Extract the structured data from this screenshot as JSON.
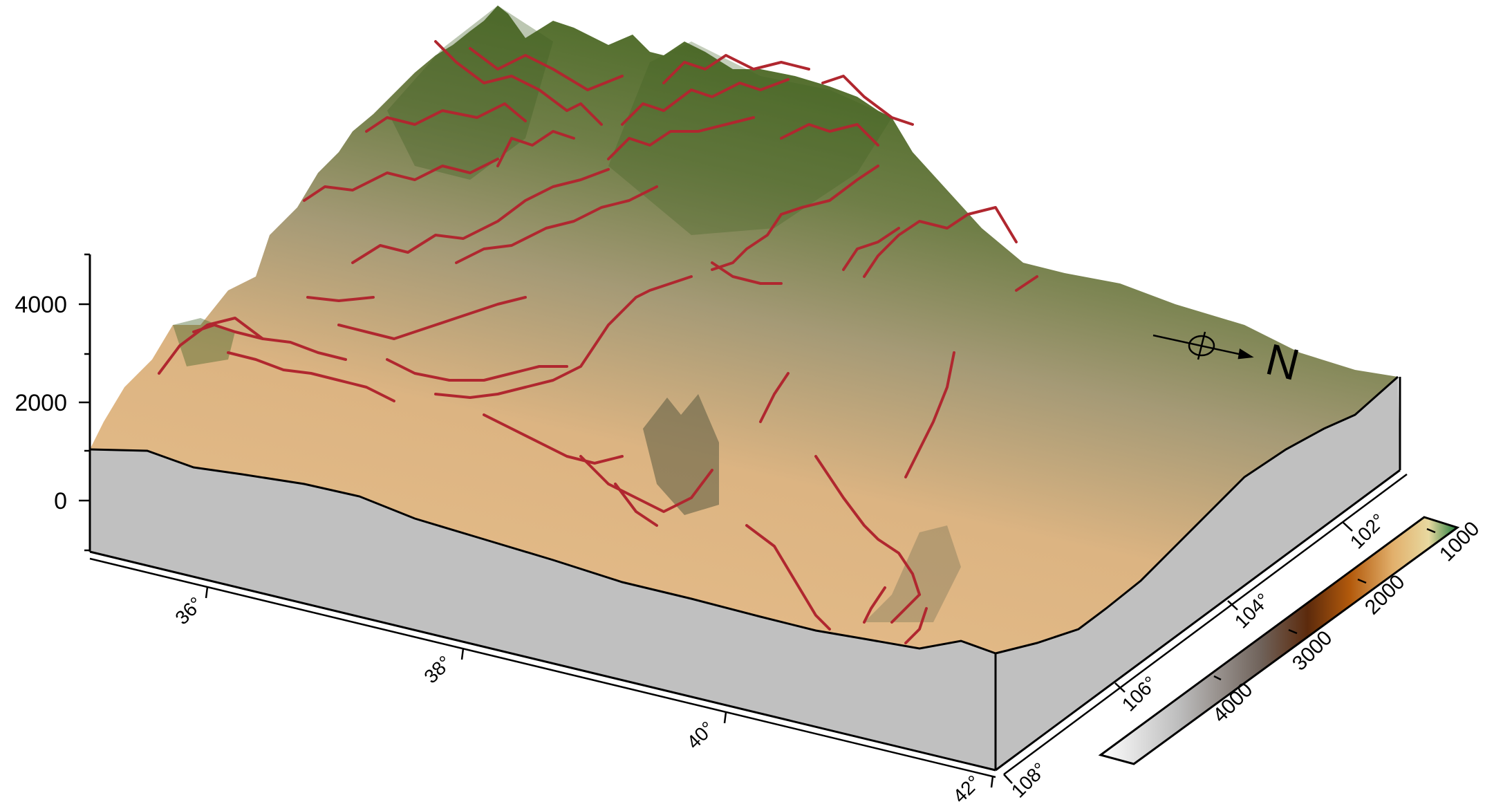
{
  "z_axis": {
    "ticks": [
      "4000",
      "2000",
      "0"
    ]
  },
  "latitude_axis": {
    "ticks": [
      "36°",
      "38°",
      "40°",
      "42°"
    ]
  },
  "longitude_axis": {
    "ticks": [
      "102°",
      "104°",
      "106°",
      "108°"
    ]
  },
  "north_arrow": {
    "label": "N"
  },
  "colorbar": {
    "upper_ticks": [
      "1000",
      "2000",
      "3000"
    ],
    "lower_ticks": [
      "4000"
    ],
    "colors": [
      "#ffffff",
      "#bdbdbd",
      "#6f625a",
      "#5c2a0c",
      "#b35a0c",
      "#e2b06c",
      "#e8d9a0",
      "#1f7a3a"
    ]
  },
  "style": {
    "fault_color": "#b0272f",
    "base_fill": "#c0c0c0",
    "terrain_low": "#e9bf8b",
    "terrain_high": "#4a6a26"
  }
}
